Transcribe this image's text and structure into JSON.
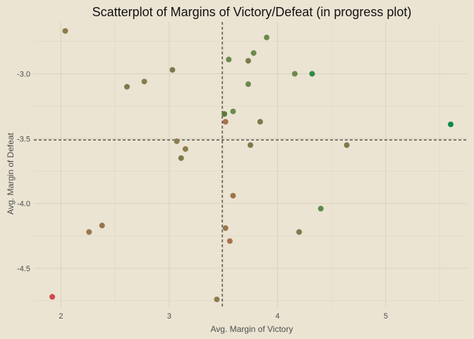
{
  "chart_data": {
    "type": "scatter",
    "title": "Scatterplot of Margins of Victory/Defeat (in progress plot)",
    "xlabel": "Avg. Margin of Victory",
    "ylabel": "Avg. Margin of Defeat",
    "xlim": [
      1.75,
      5.75
    ],
    "ylim": [
      -4.8,
      -2.6
    ],
    "xticks": [
      2,
      3,
      4,
      5
    ],
    "xtick_labels": [
      "2",
      "3",
      "4",
      "5"
    ],
    "yticks": [
      -3.0,
      -3.5,
      -4.0,
      -4.5
    ],
    "ytick_labels": [
      "-3.0",
      "-3.5",
      "-4.0",
      "-4.5"
    ],
    "grid": true,
    "reference_lines": {
      "vertical_x": 3.49,
      "horizontal_y": -3.51
    },
    "points": [
      {
        "x": 2.04,
        "y": -2.67,
        "color": "#8b7d4c"
      },
      {
        "x": 3.03,
        "y": -2.97,
        "color": "#7c7a4c"
      },
      {
        "x": 2.61,
        "y": -3.1,
        "color": "#7c7a4c"
      },
      {
        "x": 2.77,
        "y": -3.06,
        "color": "#8b7d4c"
      },
      {
        "x": 3.9,
        "y": -2.72,
        "color": "#6d8a4c"
      },
      {
        "x": 3.55,
        "y": -2.89,
        "color": "#6d8a4c"
      },
      {
        "x": 3.78,
        "y": -2.84,
        "color": "#6d8a4c"
      },
      {
        "x": 3.73,
        "y": -2.9,
        "color": "#7c7a4c"
      },
      {
        "x": 4.16,
        "y": -3.0,
        "color": "#6d8a4c"
      },
      {
        "x": 4.32,
        "y": -3.0,
        "color": "#2e8b4a"
      },
      {
        "x": 3.73,
        "y": -3.08,
        "color": "#6d8a4c"
      },
      {
        "x": 3.59,
        "y": -3.29,
        "color": "#6d8a4c"
      },
      {
        "x": 3.51,
        "y": -3.31,
        "color": "#5d7a3c"
      },
      {
        "x": 3.52,
        "y": -3.37,
        "color": "#a8734f"
      },
      {
        "x": 3.84,
        "y": -3.37,
        "color": "#7c7a4c"
      },
      {
        "x": 5.6,
        "y": -3.39,
        "color": "#0d8a4c"
      },
      {
        "x": 3.07,
        "y": -3.52,
        "color": "#8b7d4c"
      },
      {
        "x": 3.15,
        "y": -3.58,
        "color": "#8b7d4c"
      },
      {
        "x": 3.75,
        "y": -3.55,
        "color": "#7c7a4c"
      },
      {
        "x": 4.64,
        "y": -3.55,
        "color": "#7c7a4c"
      },
      {
        "x": 3.11,
        "y": -3.65,
        "color": "#7c7a4c"
      },
      {
        "x": 3.59,
        "y": -3.94,
        "color": "#9b7548"
      },
      {
        "x": 4.4,
        "y": -4.04,
        "color": "#5d8a4c"
      },
      {
        "x": 2.38,
        "y": -4.17,
        "color": "#9b7548"
      },
      {
        "x": 2.26,
        "y": -4.22,
        "color": "#9b7548"
      },
      {
        "x": 3.52,
        "y": -4.19,
        "color": "#9b7548"
      },
      {
        "x": 4.2,
        "y": -4.22,
        "color": "#7c7a4c"
      },
      {
        "x": 3.56,
        "y": -4.29,
        "color": "#a8734f"
      },
      {
        "x": 1.92,
        "y": -4.72,
        "color": "#d0474a"
      },
      {
        "x": 3.44,
        "y": -4.74,
        "color": "#8b7d4c"
      }
    ]
  },
  "colors": {
    "background": "#ebe4d3",
    "grid": "#d9d2bd",
    "reference_line": "#111111"
  }
}
